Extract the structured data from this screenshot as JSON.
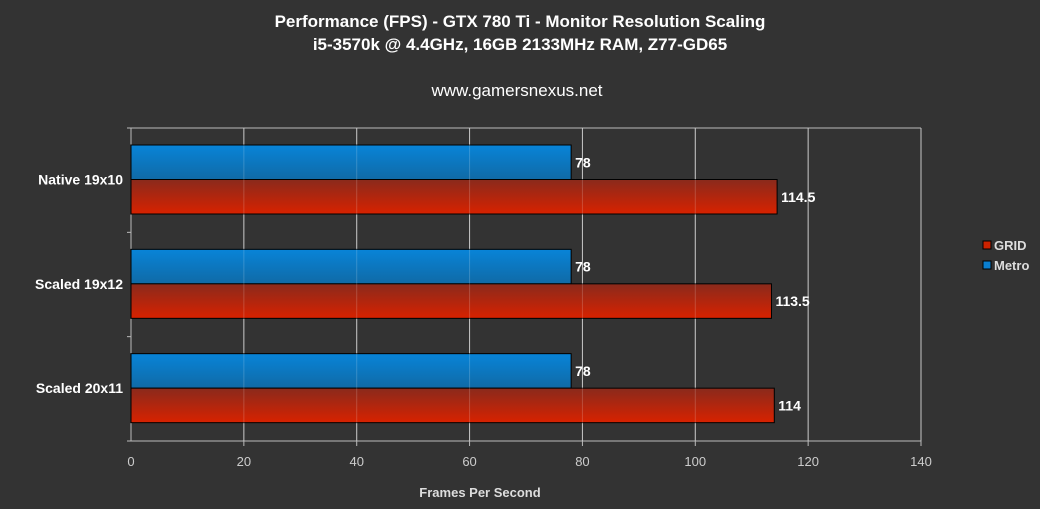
{
  "chart_data": {
    "type": "bar",
    "orientation": "horizontal",
    "title": "Performance (FPS) - GTX 780 Ti - Monitor Resolution Scaling",
    "subtitle": "i5-3570k @ 4.4GHz, 16GB 2133MHz RAM, Z77-GD65",
    "source": "www.gamersnexus.net",
    "xlabel": "Frames Per Second",
    "ylabel": "",
    "xlim": [
      0,
      140
    ],
    "xticks": [
      0,
      20,
      40,
      60,
      80,
      100,
      120,
      140
    ],
    "grid": true,
    "legend_position": "right",
    "categories": [
      "Native 19x10",
      "Scaled 19x12",
      "Scaled 20x11"
    ],
    "series": [
      {
        "name": "GRID",
        "values": [
          114.5,
          113.5,
          114
        ],
        "color": "#cc2200",
        "labels": [
          "114.5",
          "113.5",
          "114"
        ]
      },
      {
        "name": "Metro",
        "values": [
          78,
          78,
          78
        ],
        "color": "#0a7fd0",
        "labels": [
          "78",
          "78",
          "78"
        ]
      }
    ]
  }
}
